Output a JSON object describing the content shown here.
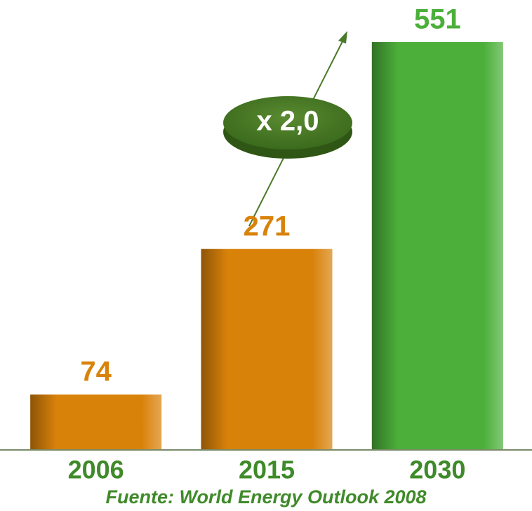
{
  "chart_data": {
    "type": "bar",
    "categories": [
      "2006",
      "2015",
      "2030"
    ],
    "values": [
      74,
      271,
      551
    ],
    "colors": [
      "#d9820a",
      "#d9820a",
      "#4caf3a"
    ],
    "annotation": "x 2,0",
    "source": "Fuente: World Energy Outlook 2008"
  }
}
